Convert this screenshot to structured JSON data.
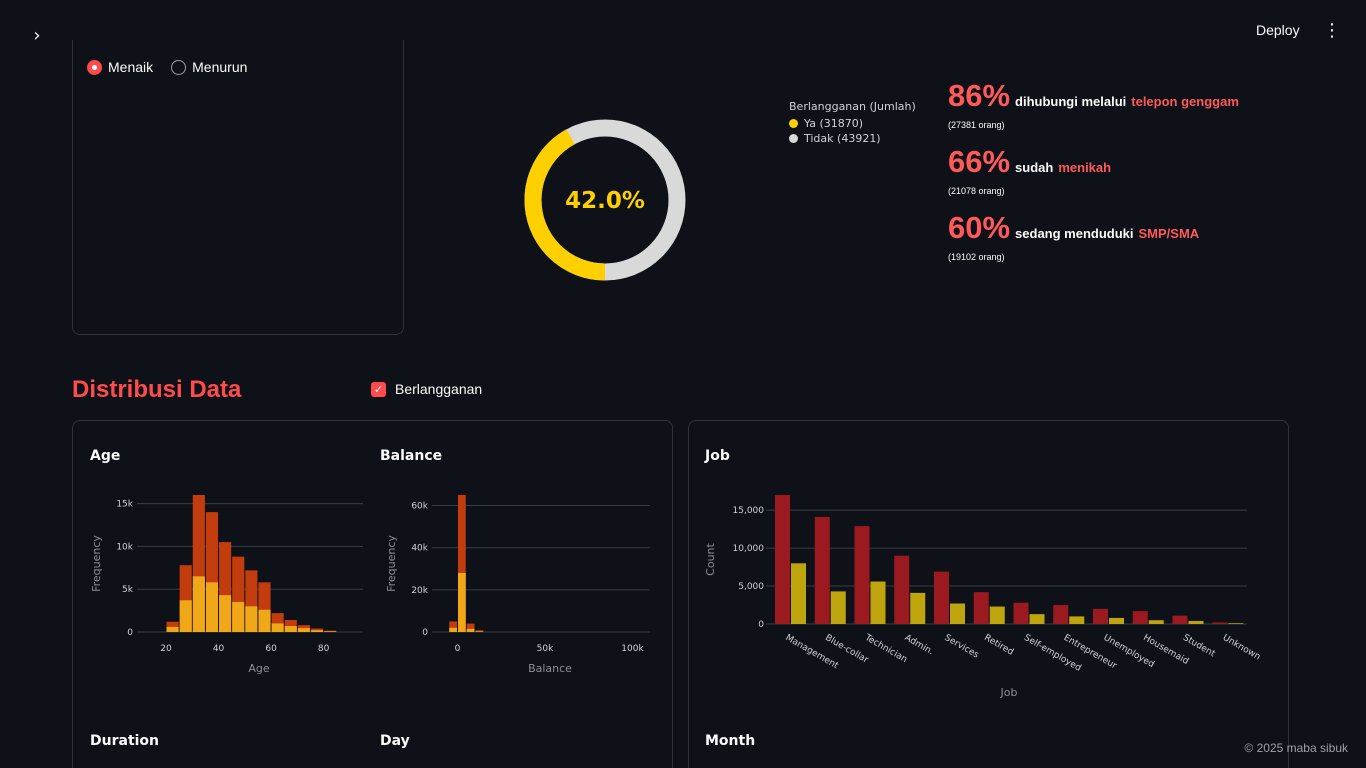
{
  "header": {
    "deploy_label": "Deploy"
  },
  "filters": {
    "sort_options": [
      "Menaik",
      "Menurun"
    ],
    "sort_selected": "Menaik"
  },
  "donut": {
    "center_label": "42.0%",
    "legend_title": "Berlangganan (Jumlah)",
    "items": [
      {
        "label": "Ya (31870)",
        "value": 31870,
        "color": "#ffd000"
      },
      {
        "label": "Tidak (43921)",
        "value": 43921,
        "color": "#d9d9d9"
      }
    ]
  },
  "stats": [
    {
      "pct": "86%",
      "text": "dihubungi melalui",
      "highlight": "telepon genggam",
      "sub": "(27381 orang)"
    },
    {
      "pct": "66%",
      "text": "sudah",
      "highlight": "menikah",
      "sub": "(21078 orang)"
    },
    {
      "pct": "60%",
      "text": "sedang menduduki",
      "highlight": "SMP/SMA",
      "sub": "(19102 orang)"
    }
  ],
  "section": {
    "title": "Distribusi Data",
    "checkbox_label": "Berlangganan",
    "checkbox_checked": true
  },
  "cards": {
    "age": "Age",
    "balance": "Balance",
    "job": "Job",
    "duration": "Duration",
    "day": "Day",
    "month": "Month"
  },
  "chart_data": [
    {
      "type": "bar",
      "title": "Age",
      "xlabel": "Age",
      "ylabel": "Frequency",
      "x": [
        20,
        25,
        30,
        35,
        40,
        45,
        50,
        55,
        60,
        65,
        70,
        75,
        80
      ],
      "xticks": [
        "20",
        "40",
        "60",
        "80"
      ],
      "yticks": [
        "0",
        "5k",
        "10k",
        "15k"
      ],
      "ylim": [
        0,
        16000
      ],
      "series": [
        {
          "values": [
            1200,
            7800,
            16000,
            14000,
            10500,
            8800,
            7200,
            5800,
            2200,
            1400,
            800,
            400,
            150
          ],
          "color": "#c23c0e"
        },
        {
          "values": [
            600,
            3700,
            6500,
            5800,
            4300,
            3500,
            3000,
            2600,
            1000,
            700,
            450,
            200,
            80
          ],
          "color": "#f0a818"
        }
      ]
    },
    {
      "type": "bar",
      "title": "Balance",
      "xlabel": "Balance",
      "ylabel": "Frequency",
      "x": [
        -5000,
        0,
        5000,
        10000
      ],
      "xticks": [
        "0",
        "50k",
        "100k"
      ],
      "yticks": [
        "0",
        "20k",
        "40k",
        "60k"
      ],
      "ylim": [
        0,
        65000
      ],
      "series": [
        {
          "values": [
            5000,
            65000,
            4000,
            800
          ],
          "color": "#c23c0e"
        },
        {
          "values": [
            2000,
            28000,
            1500,
            300
          ],
          "color": "#f0a818"
        }
      ]
    },
    {
      "type": "bar",
      "title": "Job",
      "xlabel": "Job",
      "ylabel": "Count",
      "categories": [
        "Management",
        "Blue-collar",
        "Technician",
        "Admin.",
        "Services",
        "Retired",
        "Self-employed",
        "Entrepreneur",
        "Unemployed",
        "Housemaid",
        "Student",
        "Unknown"
      ],
      "yticks": [
        "0",
        "5,000",
        "10,000",
        "15,000"
      ],
      "ylim": [
        0,
        17000
      ],
      "series": [
        {
          "values": [
            17000,
            14100,
            12900,
            9000,
            6900,
            4200,
            2800,
            2500,
            2000,
            1700,
            1100,
            200
          ],
          "color": "#9b1a1f"
        },
        {
          "values": [
            8000,
            4300,
            5600,
            4100,
            2700,
            2300,
            1300,
            1000,
            800,
            500,
            400,
            100
          ],
          "color": "#bea40d"
        }
      ]
    }
  ],
  "footer": {
    "text": "© 2025 maba sibuk"
  }
}
